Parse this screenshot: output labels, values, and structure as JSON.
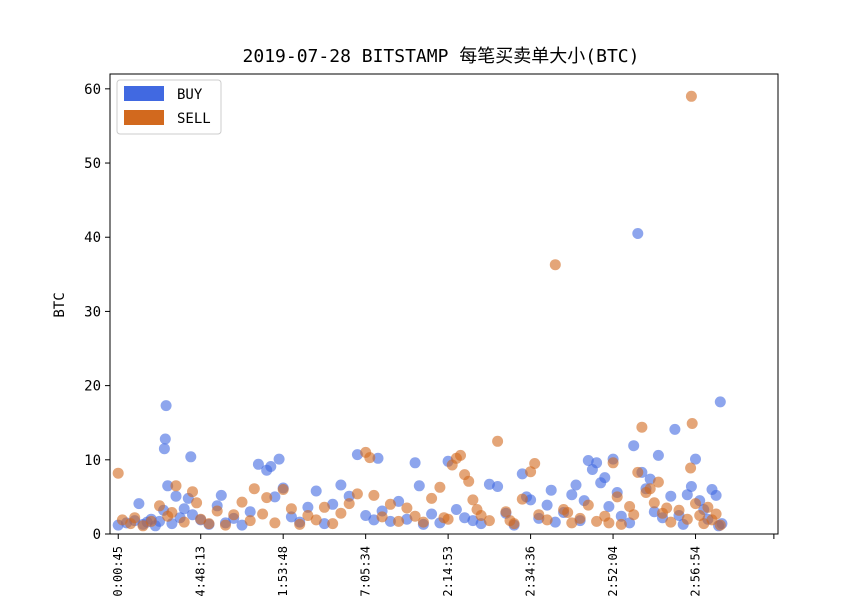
{
  "chart_data": {
    "type": "scatter",
    "title": "2019-07-28 BITSTAMP 每笔买卖单大小(BTC)",
    "xlabel": "",
    "ylabel": "BTC",
    "ylim": [
      0,
      62
    ],
    "y_ticks": [
      0,
      10,
      20,
      30,
      40,
      50,
      60
    ],
    "x_tick_labels": [
      "0:00:45",
      "4:48:13",
      "1:53:48",
      "7:05:34",
      "2:14:53",
      "2:34:36",
      "2:52:04",
      "2:56:54"
    ],
    "x_tick_positions": [
      0,
      1,
      2,
      3,
      4,
      5,
      6,
      7
    ],
    "xlim": [
      -0.1,
      8.0
    ],
    "grid": false,
    "legend_position": "top-left",
    "colors": {
      "buy": "#4169E1",
      "sell": "#D2691E",
      "alpha": 0.6
    },
    "series": [
      {
        "name": "BUY",
        "color": "#4169E1",
        "points": [
          [
            0.0,
            1.2
          ],
          [
            0.1,
            1.5
          ],
          [
            0.2,
            1.8
          ],
          [
            0.25,
            4.1
          ],
          [
            0.3,
            1.3
          ],
          [
            0.35,
            1.6
          ],
          [
            0.4,
            2.0
          ],
          [
            0.45,
            1.1
          ],
          [
            0.5,
            1.7
          ],
          [
            0.55,
            3.2
          ],
          [
            0.58,
            17.3
          ],
          [
            0.57,
            12.8
          ],
          [
            0.56,
            11.5
          ],
          [
            0.6,
            6.5
          ],
          [
            0.65,
            1.4
          ],
          [
            0.7,
            5.1
          ],
          [
            0.75,
            2.2
          ],
          [
            0.8,
            3.4
          ],
          [
            0.85,
            4.8
          ],
          [
            0.88,
            10.4
          ],
          [
            0.9,
            2.6
          ],
          [
            1.0,
            1.9
          ],
          [
            1.1,
            1.3
          ],
          [
            1.2,
            3.8
          ],
          [
            1.25,
            5.2
          ],
          [
            1.3,
            1.5
          ],
          [
            1.4,
            2.1
          ],
          [
            1.5,
            1.2
          ],
          [
            1.6,
            3.0
          ],
          [
            1.7,
            9.4
          ],
          [
            1.8,
            8.6
          ],
          [
            1.85,
            9.1
          ],
          [
            1.9,
            5.0
          ],
          [
            1.95,
            10.1
          ],
          [
            2.0,
            6.2
          ],
          [
            2.1,
            2.3
          ],
          [
            2.2,
            1.6
          ],
          [
            2.3,
            3.6
          ],
          [
            2.4,
            5.8
          ],
          [
            2.5,
            1.4
          ],
          [
            2.6,
            4.0
          ],
          [
            2.7,
            6.6
          ],
          [
            2.8,
            5.1
          ],
          [
            2.9,
            10.7
          ],
          [
            3.0,
            2.5
          ],
          [
            3.1,
            1.9
          ],
          [
            3.15,
            10.2
          ],
          [
            3.2,
            3.1
          ],
          [
            3.3,
            1.7
          ],
          [
            3.4,
            4.4
          ],
          [
            3.5,
            2.0
          ],
          [
            3.6,
            9.6
          ],
          [
            3.65,
            6.5
          ],
          [
            3.7,
            1.3
          ],
          [
            3.8,
            2.7
          ],
          [
            3.9,
            1.5
          ],
          [
            4.0,
            9.8
          ],
          [
            4.1,
            3.3
          ],
          [
            4.2,
            2.2
          ],
          [
            4.3,
            1.8
          ],
          [
            4.4,
            1.4
          ],
          [
            4.5,
            6.7
          ],
          [
            4.6,
            6.4
          ],
          [
            4.7,
            2.8
          ],
          [
            4.8,
            1.2
          ],
          [
            4.9,
            8.1
          ],
          [
            4.95,
            5.0
          ],
          [
            5.0,
            4.6
          ],
          [
            5.1,
            2.1
          ],
          [
            5.2,
            3.9
          ],
          [
            5.25,
            5.9
          ],
          [
            5.3,
            1.6
          ],
          [
            5.4,
            2.9
          ],
          [
            5.5,
            5.3
          ],
          [
            5.55,
            6.6
          ],
          [
            5.6,
            1.8
          ],
          [
            5.65,
            4.5
          ],
          [
            5.7,
            9.9
          ],
          [
            5.75,
            8.7
          ],
          [
            5.8,
            9.6
          ],
          [
            5.85,
            6.9
          ],
          [
            5.9,
            7.6
          ],
          [
            5.95,
            3.7
          ],
          [
            6.0,
            10.1
          ],
          [
            6.05,
            5.6
          ],
          [
            6.1,
            2.4
          ],
          [
            6.2,
            1.5
          ],
          [
            6.25,
            11.9
          ],
          [
            6.3,
            40.5
          ],
          [
            6.35,
            8.3
          ],
          [
            6.4,
            6.1
          ],
          [
            6.45,
            7.4
          ],
          [
            6.5,
            3.0
          ],
          [
            6.55,
            10.6
          ],
          [
            6.6,
            2.2
          ],
          [
            6.7,
            5.1
          ],
          [
            6.75,
            14.1
          ],
          [
            6.8,
            2.5
          ],
          [
            6.9,
            5.3
          ],
          [
            6.95,
            6.4
          ],
          [
            7.0,
            10.1
          ],
          [
            7.05,
            4.5
          ],
          [
            7.1,
            3.3
          ],
          [
            7.15,
            2.0
          ],
          [
            7.2,
            6.0
          ],
          [
            7.25,
            5.2
          ],
          [
            7.3,
            17.8
          ],
          [
            7.32,
            1.4
          ],
          [
            7.28,
            1.1
          ],
          [
            6.85,
            1.3
          ]
        ]
      },
      {
        "name": "SELL",
        "color": "#D2691E",
        "points": [
          [
            0.0,
            8.2
          ],
          [
            0.05,
            1.9
          ],
          [
            0.15,
            1.4
          ],
          [
            0.2,
            2.2
          ],
          [
            0.3,
            1.1
          ],
          [
            0.4,
            1.7
          ],
          [
            0.5,
            3.8
          ],
          [
            0.6,
            2.4
          ],
          [
            0.65,
            2.9
          ],
          [
            0.7,
            6.5
          ],
          [
            0.8,
            1.6
          ],
          [
            0.9,
            5.7
          ],
          [
            0.95,
            4.2
          ],
          [
            1.0,
            2.0
          ],
          [
            1.1,
            1.4
          ],
          [
            1.2,
            3.1
          ],
          [
            1.3,
            1.2
          ],
          [
            1.4,
            2.6
          ],
          [
            1.5,
            4.3
          ],
          [
            1.6,
            1.8
          ],
          [
            1.65,
            6.1
          ],
          [
            1.75,
            2.7
          ],
          [
            1.8,
            4.9
          ],
          [
            1.9,
            1.5
          ],
          [
            2.0,
            6.0
          ],
          [
            2.1,
            3.4
          ],
          [
            2.2,
            1.3
          ],
          [
            2.3,
            2.5
          ],
          [
            2.4,
            1.9
          ],
          [
            2.5,
            3.6
          ],
          [
            2.6,
            1.4
          ],
          [
            2.7,
            2.8
          ],
          [
            2.8,
            4.1
          ],
          [
            2.9,
            5.4
          ],
          [
            3.0,
            11.0
          ],
          [
            3.05,
            10.3
          ],
          [
            3.1,
            5.2
          ],
          [
            3.2,
            2.3
          ],
          [
            3.3,
            4.0
          ],
          [
            3.4,
            1.7
          ],
          [
            3.5,
            3.5
          ],
          [
            3.6,
            2.4
          ],
          [
            3.7,
            1.6
          ],
          [
            3.8,
            4.8
          ],
          [
            3.9,
            6.3
          ],
          [
            4.0,
            2.0
          ],
          [
            4.05,
            9.3
          ],
          [
            4.1,
            10.2
          ],
          [
            4.15,
            10.6
          ],
          [
            4.2,
            8.0
          ],
          [
            4.25,
            7.1
          ],
          [
            4.3,
            4.6
          ],
          [
            4.35,
            3.3
          ],
          [
            4.4,
            2.5
          ],
          [
            4.5,
            1.8
          ],
          [
            4.6,
            12.5
          ],
          [
            4.7,
            3.0
          ],
          [
            4.8,
            1.4
          ],
          [
            4.9,
            4.7
          ],
          [
            5.0,
            8.4
          ],
          [
            5.05,
            9.5
          ],
          [
            5.1,
            2.6
          ],
          [
            5.2,
            1.9
          ],
          [
            5.3,
            36.3
          ],
          [
            5.4,
            3.3
          ],
          [
            5.5,
            1.5
          ],
          [
            5.6,
            2.1
          ],
          [
            5.7,
            3.9
          ],
          [
            5.8,
            1.7
          ],
          [
            5.9,
            2.4
          ],
          [
            6.0,
            9.6
          ],
          [
            6.05,
            5.0
          ],
          [
            6.1,
            1.3
          ],
          [
            6.2,
            3.7
          ],
          [
            6.3,
            8.3
          ],
          [
            6.35,
            14.4
          ],
          [
            6.4,
            5.6
          ],
          [
            6.45,
            6.1
          ],
          [
            6.5,
            4.2
          ],
          [
            6.55,
            7.0
          ],
          [
            6.6,
            2.8
          ],
          [
            6.7,
            1.6
          ],
          [
            6.8,
            3.2
          ],
          [
            6.9,
            2.0
          ],
          [
            6.95,
            59.0
          ],
          [
            6.96,
            14.9
          ],
          [
            6.94,
            8.9
          ],
          [
            7.0,
            4.1
          ],
          [
            7.05,
            2.5
          ],
          [
            7.1,
            1.4
          ],
          [
            7.15,
            3.6
          ],
          [
            7.2,
            1.9
          ],
          [
            7.25,
            2.7
          ],
          [
            7.3,
            1.2
          ],
          [
            6.65,
            3.5
          ],
          [
            6.25,
            2.6
          ],
          [
            5.95,
            1.5
          ],
          [
            5.45,
            2.9
          ],
          [
            4.75,
            1.8
          ],
          [
            3.95,
            2.2
          ]
        ]
      }
    ]
  }
}
